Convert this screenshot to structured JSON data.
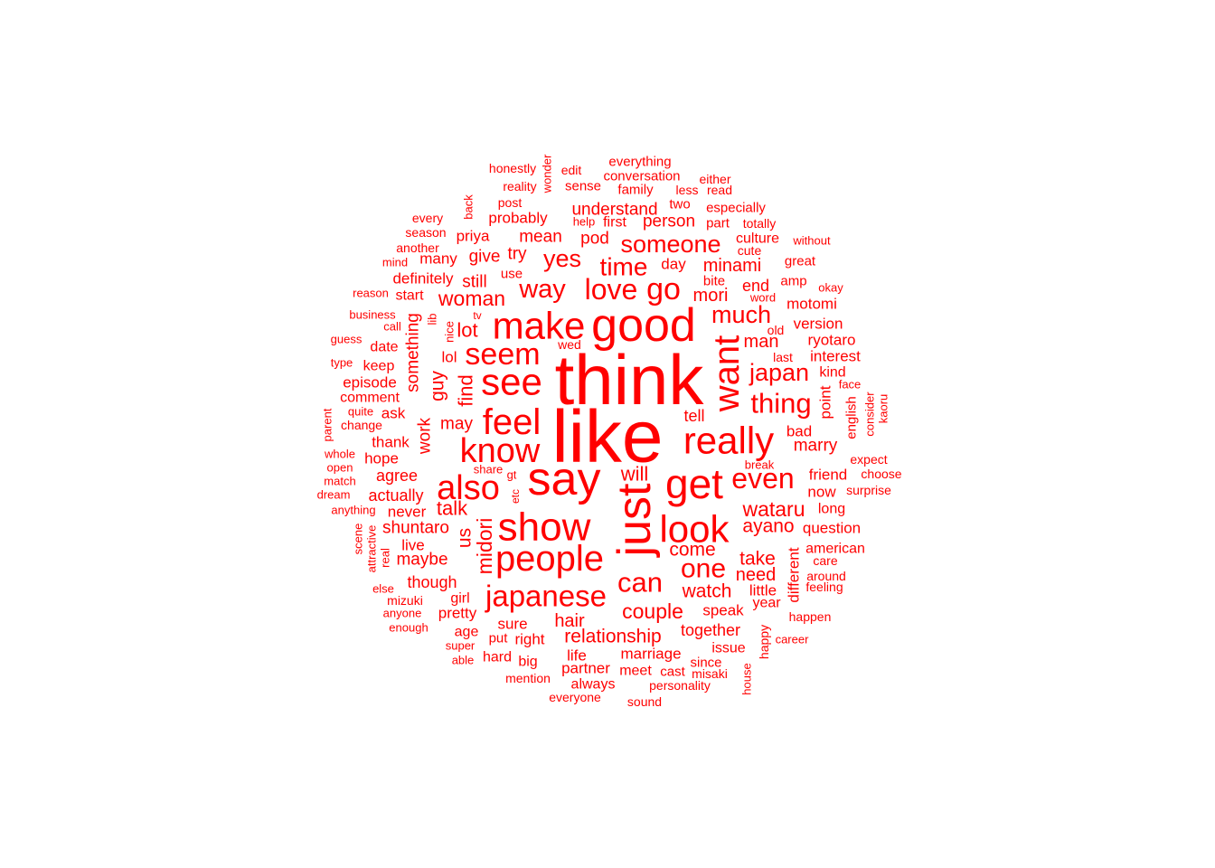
{
  "color": "#ff0000",
  "words": [
    {
      "text": "think",
      "weight": 78
    },
    {
      "text": "like",
      "weight": 82
    },
    {
      "text": "say",
      "weight": 52
    },
    {
      "text": "good",
      "weight": 52
    },
    {
      "text": "just",
      "weight": 52,
      "vertical": true
    },
    {
      "text": "make",
      "weight": 42
    },
    {
      "text": "get",
      "weight": 46
    },
    {
      "text": "show",
      "weight": 44
    },
    {
      "text": "see",
      "weight": 42
    },
    {
      "text": "also",
      "weight": 38
    },
    {
      "text": "look",
      "weight": 42
    },
    {
      "text": "people",
      "weight": 40
    },
    {
      "text": "know",
      "weight": 38
    },
    {
      "text": "feel",
      "weight": 40
    },
    {
      "text": "really",
      "weight": 42
    },
    {
      "text": "want",
      "weight": 40,
      "vertical": true
    },
    {
      "text": "seem",
      "weight": 34
    },
    {
      "text": "japanese",
      "weight": 33
    },
    {
      "text": "love",
      "weight": 32
    },
    {
      "text": "even",
      "weight": 32
    },
    {
      "text": "go",
      "weight": 34
    },
    {
      "text": "way",
      "weight": 29
    },
    {
      "text": "thing",
      "weight": 31
    },
    {
      "text": "can",
      "weight": 31
    },
    {
      "text": "one",
      "weight": 30
    },
    {
      "text": "much",
      "weight": 27
    },
    {
      "text": "time",
      "weight": 28
    },
    {
      "text": "someone",
      "weight": 27
    },
    {
      "text": "japan",
      "weight": 27
    },
    {
      "text": "yes",
      "weight": 27
    },
    {
      "text": "couple",
      "weight": 23
    },
    {
      "text": "midori",
      "weight": 23,
      "vertical": true
    },
    {
      "text": "woman",
      "weight": 23
    },
    {
      "text": "wataru",
      "weight": 23
    },
    {
      "text": "ayano",
      "weight": 21
    },
    {
      "text": "come",
      "weight": 21
    },
    {
      "text": "watch",
      "weight": 21
    },
    {
      "text": "take",
      "weight": 21
    },
    {
      "text": "need",
      "weight": 20
    },
    {
      "text": "will",
      "weight": 22
    },
    {
      "text": "relationship",
      "weight": 21
    },
    {
      "text": "lot",
      "weight": 22
    },
    {
      "text": "talk",
      "weight": 22
    },
    {
      "text": "us",
      "weight": 21,
      "vertical": true
    },
    {
      "text": "hair",
      "weight": 20
    },
    {
      "text": "mori",
      "weight": 20
    },
    {
      "text": "minami",
      "weight": 20
    },
    {
      "text": "man",
      "weight": 20
    },
    {
      "text": "find",
      "weight": 22,
      "vertical": true
    },
    {
      "text": "guy",
      "weight": 21,
      "vertical": true
    },
    {
      "text": "maybe",
      "weight": 19
    },
    {
      "text": "shuntaro",
      "weight": 19
    },
    {
      "text": "understand",
      "weight": 19
    },
    {
      "text": "mean",
      "weight": 19
    },
    {
      "text": "pod",
      "weight": 19
    },
    {
      "text": "give",
      "weight": 19
    },
    {
      "text": "marry",
      "weight": 19
    },
    {
      "text": "person",
      "weight": 19
    },
    {
      "text": "try",
      "weight": 19
    },
    {
      "text": "still",
      "weight": 19
    },
    {
      "text": "work",
      "weight": 19,
      "vertical": true
    },
    {
      "text": "may",
      "weight": 19
    },
    {
      "text": "something",
      "weight": 19,
      "vertical": true
    },
    {
      "text": "together",
      "weight": 18
    },
    {
      "text": "end",
      "weight": 18
    },
    {
      "text": "agree",
      "weight": 18
    },
    {
      "text": "tell",
      "weight": 18
    },
    {
      "text": "actually",
      "weight": 18
    },
    {
      "text": "though",
      "weight": 18
    },
    {
      "text": "marriage",
      "weight": 17
    },
    {
      "text": "speak",
      "weight": 17
    },
    {
      "text": "friend",
      "weight": 17
    },
    {
      "text": "probably",
      "weight": 17
    },
    {
      "text": "sure",
      "weight": 17
    },
    {
      "text": "right",
      "weight": 17
    },
    {
      "text": "version",
      "weight": 17
    },
    {
      "text": "ryotaro",
      "weight": 17
    },
    {
      "text": "motomi",
      "weight": 17
    },
    {
      "text": "question",
      "weight": 17
    },
    {
      "text": "interest",
      "weight": 17
    },
    {
      "text": "point",
      "weight": 17,
      "vertical": true
    },
    {
      "text": "different",
      "weight": 17,
      "vertical": true
    },
    {
      "text": "little",
      "weight": 17
    },
    {
      "text": "bad",
      "weight": 17
    },
    {
      "text": "partner",
      "weight": 17
    },
    {
      "text": "now",
      "weight": 17
    },
    {
      "text": "episode",
      "weight": 17
    },
    {
      "text": "thank",
      "weight": 17
    },
    {
      "text": "hope",
      "weight": 17
    },
    {
      "text": "ask",
      "weight": 17
    },
    {
      "text": "never",
      "weight": 17
    },
    {
      "text": "live",
      "weight": 17
    },
    {
      "text": "pretty",
      "weight": 17
    },
    {
      "text": "age",
      "weight": 16
    },
    {
      "text": "life",
      "weight": 17
    },
    {
      "text": "definitely",
      "weight": 17
    },
    {
      "text": "priya",
      "weight": 17
    },
    {
      "text": "day",
      "weight": 17
    },
    {
      "text": "many",
      "weight": 17
    },
    {
      "text": "keep",
      "weight": 16
    },
    {
      "text": "date",
      "weight": 16
    },
    {
      "text": "lol",
      "weight": 17
    },
    {
      "text": "culture",
      "weight": 16
    },
    {
      "text": "long",
      "weight": 16
    },
    {
      "text": "kind",
      "weight": 16
    },
    {
      "text": "first",
      "weight": 16
    },
    {
      "text": "meet",
      "weight": 16
    },
    {
      "text": "issue",
      "weight": 16
    },
    {
      "text": "american",
      "weight": 16
    },
    {
      "text": "year",
      "weight": 16
    },
    {
      "text": "comment",
      "weight": 16
    },
    {
      "text": "girl",
      "weight": 16
    },
    {
      "text": "hard",
      "weight": 16
    },
    {
      "text": "start",
      "weight": 16
    },
    {
      "text": "big",
      "weight": 16
    },
    {
      "text": "always",
      "weight": 16
    },
    {
      "text": "cast",
      "weight": 15
    },
    {
      "text": "since",
      "weight": 15
    },
    {
      "text": "amp",
      "weight": 15
    },
    {
      "text": "english",
      "weight": 15,
      "vertical": true
    },
    {
      "text": "everything",
      "weight": 15
    },
    {
      "text": "conversation",
      "weight": 15
    },
    {
      "text": "family",
      "weight": 15
    },
    {
      "text": "especially",
      "weight": 15
    },
    {
      "text": "bite",
      "weight": 15
    },
    {
      "text": "great",
      "weight": 15
    },
    {
      "text": "sense",
      "weight": 15
    },
    {
      "text": "two",
      "weight": 15
    },
    {
      "text": "part",
      "weight": 15
    },
    {
      "text": "put",
      "weight": 15
    },
    {
      "text": "personality",
      "weight": 14
    },
    {
      "text": "happen",
      "weight": 14
    },
    {
      "text": "use",
      "weight": 15
    },
    {
      "text": "mizuki",
      "weight": 14
    },
    {
      "text": "totally",
      "weight": 14
    },
    {
      "text": "honestly",
      "weight": 14
    },
    {
      "text": "post",
      "weight": 14
    },
    {
      "text": "reality",
      "weight": 14
    },
    {
      "text": "every",
      "weight": 14
    },
    {
      "text": "season",
      "weight": 14
    },
    {
      "text": "another",
      "weight": 14
    },
    {
      "text": "edit",
      "weight": 14
    },
    {
      "text": "read",
      "weight": 14
    },
    {
      "text": "less",
      "weight": 14
    },
    {
      "text": "either",
      "weight": 14
    },
    {
      "text": "mention",
      "weight": 14
    },
    {
      "text": "everyone",
      "weight": 14
    },
    {
      "text": "sound",
      "weight": 14
    },
    {
      "text": "misaki",
      "weight": 14
    },
    {
      "text": "feeling",
      "weight": 14
    },
    {
      "text": "around",
      "weight": 14
    },
    {
      "text": "care",
      "weight": 14
    },
    {
      "text": "surprise",
      "weight": 14
    },
    {
      "text": "choose",
      "weight": 14
    },
    {
      "text": "expect",
      "weight": 14
    },
    {
      "text": "face",
      "weight": 13
    },
    {
      "text": "okay",
      "weight": 13
    },
    {
      "text": "without",
      "weight": 13
    },
    {
      "text": "cute",
      "weight": 14
    },
    {
      "text": "word",
      "weight": 13
    },
    {
      "text": "old",
      "weight": 14
    },
    {
      "text": "last",
      "weight": 14
    },
    {
      "text": "wed",
      "weight": 14
    },
    {
      "text": "help",
      "weight": 13
    },
    {
      "text": "super",
      "weight": 13
    },
    {
      "text": "able",
      "weight": 13
    },
    {
      "text": "enough",
      "weight": 13
    },
    {
      "text": "anyone",
      "weight": 13
    },
    {
      "text": "else",
      "weight": 13
    },
    {
      "text": "guess",
      "weight": 13
    },
    {
      "text": "type",
      "weight": 13
    },
    {
      "text": "reason",
      "weight": 13
    },
    {
      "text": "business",
      "weight": 13
    },
    {
      "text": "call",
      "weight": 13
    },
    {
      "text": "quite",
      "weight": 13
    },
    {
      "text": "change",
      "weight": 14
    },
    {
      "text": "whole",
      "weight": 13
    },
    {
      "text": "open",
      "weight": 13
    },
    {
      "text": "match",
      "weight": 13
    },
    {
      "text": "dream",
      "weight": 13
    },
    {
      "text": "anything",
      "weight": 13
    },
    {
      "text": "mind",
      "weight": 13
    },
    {
      "text": "share",
      "weight": 13
    },
    {
      "text": "gt",
      "weight": 13
    },
    {
      "text": "break",
      "weight": 13
    },
    {
      "text": "tv",
      "weight": 12
    },
    {
      "text": "career",
      "weight": 13
    },
    {
      "text": "back",
      "weight": 13,
      "vertical": true
    },
    {
      "text": "wonder",
      "weight": 13,
      "vertical": true
    },
    {
      "text": "lib",
      "weight": 13,
      "vertical": true
    },
    {
      "text": "nice",
      "weight": 13,
      "vertical": true
    },
    {
      "text": "etc",
      "weight": 12,
      "vertical": true
    },
    {
      "text": "scene",
      "weight": 13,
      "vertical": true
    },
    {
      "text": "attractive",
      "weight": 13,
      "vertical": true
    },
    {
      "text": "real",
      "weight": 13,
      "vertical": true
    },
    {
      "text": "parent",
      "weight": 13,
      "vertical": true
    },
    {
      "text": "consider",
      "weight": 13,
      "vertical": true
    },
    {
      "text": "kaoru",
      "weight": 13,
      "vertical": true
    },
    {
      "text": "happy",
      "weight": 14,
      "vertical": true
    },
    {
      "text": "house",
      "weight": 13,
      "vertical": true
    }
  ]
}
